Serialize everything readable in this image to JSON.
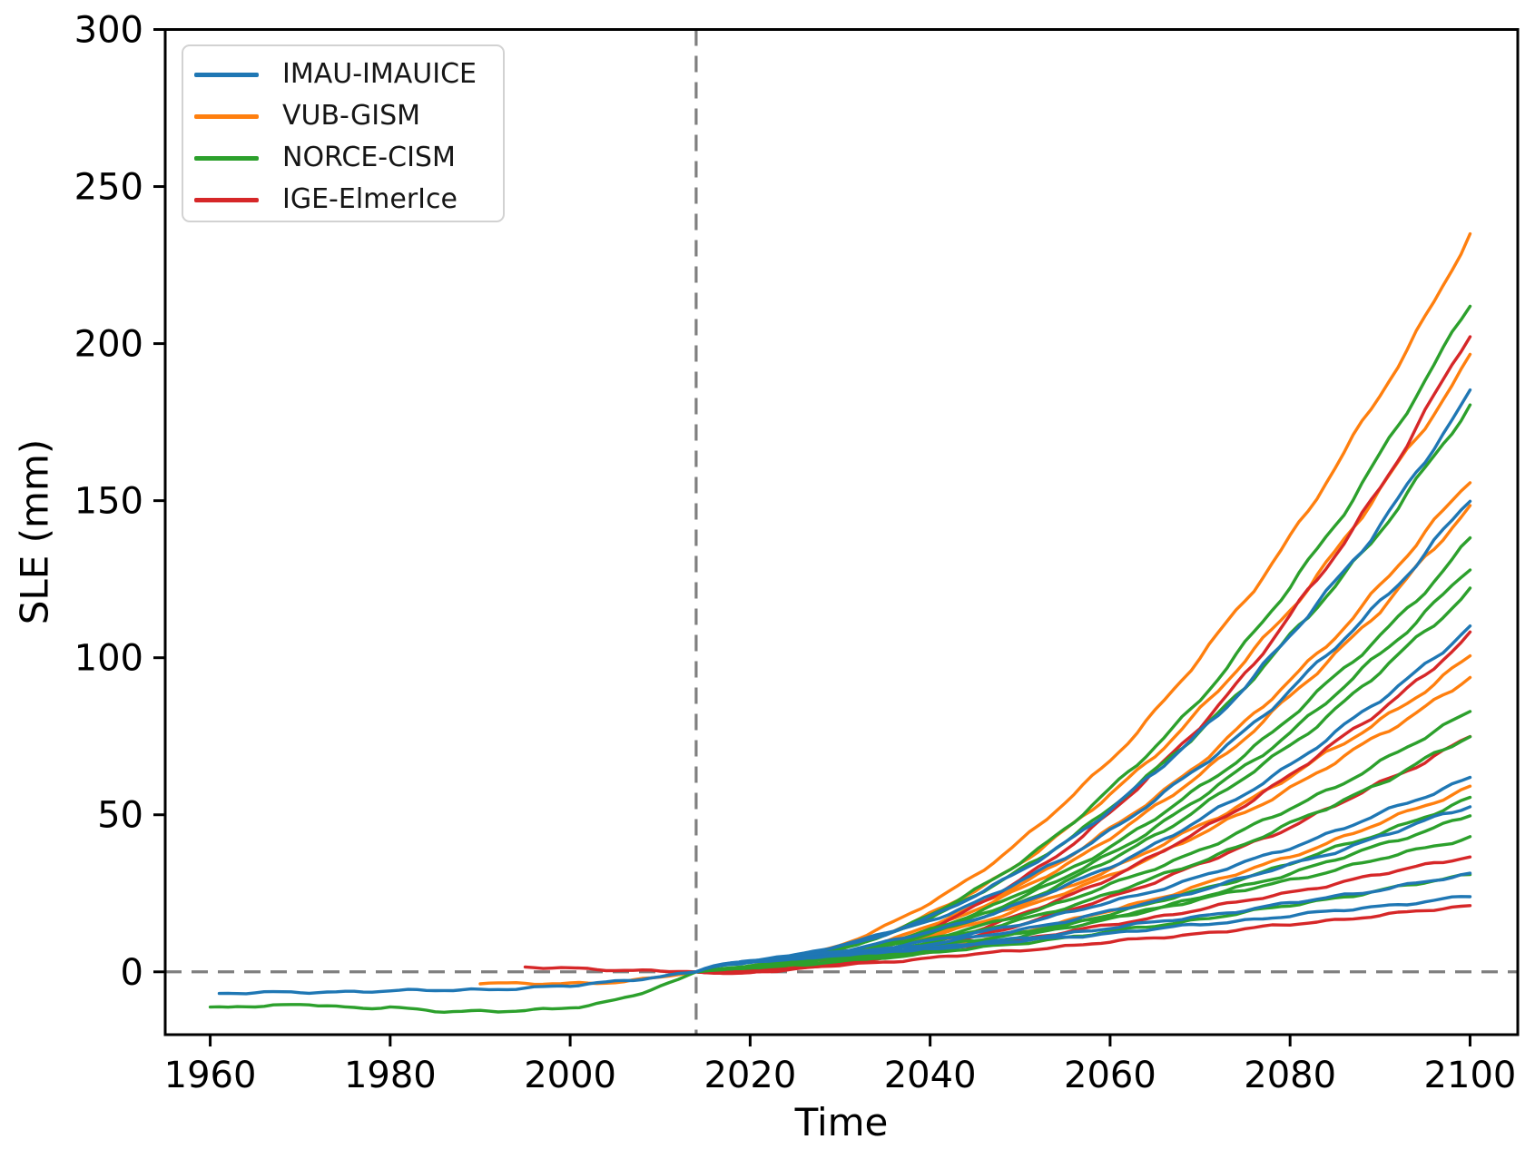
{
  "chart_data": {
    "type": "line",
    "title": "",
    "xlabel": "Time",
    "ylabel": "SLE (mm)",
    "xlim": [
      1955,
      2105.3
    ],
    "ylim": [
      -20,
      300
    ],
    "xticks": [
      1960,
      1980,
      2000,
      2020,
      2040,
      2060,
      2080,
      2100
    ],
    "yticks": [
      0,
      50,
      100,
      150,
      200,
      250,
      300
    ],
    "grid": false,
    "legend_position": "upper left",
    "axis_color": "#000000",
    "line_width": 3.4,
    "reference_lines": [
      {
        "name": "zero-line",
        "orientation": "horizontal",
        "value": 0,
        "style": "dashed",
        "color": "#7f7f7f"
      },
      {
        "name": "projection-start-line",
        "orientation": "vertical",
        "value": 2014,
        "style": "dashed",
        "color": "#7f7f7f"
      }
    ],
    "groups": [
      {
        "name": "IMAU-IMAUICE",
        "color": "#1f77b4"
      },
      {
        "name": "VUB-GISM",
        "color": "#ff7f0e"
      },
      {
        "name": "NORCE-CISM",
        "color": "#2ca02c"
      },
      {
        "name": "IGE-ElmerIce",
        "color": "#d62728"
      }
    ],
    "draw_order": [
      "VUB-GISM",
      "IGE-ElmerIce",
      "NORCE-CISM",
      "IMAU-IMAUICE"
    ],
    "projection_years": [
      2014,
      2015,
      2020,
      2040,
      2060,
      2080,
      2100
    ],
    "projection_series": [
      {
        "group": "IMAU-IMAUICE",
        "end_2100": 184,
        "curve_power": 2.1,
        "start_kick": 3,
        "values": [
          0,
          1.2,
          3.7,
          17.7,
          51.6,
          106.8,
          184
        ]
      },
      {
        "group": "IMAU-IMAUICE",
        "end_2100": 150,
        "curve_power": 2.0,
        "start_kick": 3,
        "values": [
          0,
          1.2,
          3.7,
          16.4,
          45.1,
          89.6,
          150
        ]
      },
      {
        "group": "IMAU-IMAUICE",
        "end_2100": 110,
        "curve_power": 2.0,
        "start_kick": 3,
        "values": [
          0,
          1.2,
          3.5,
          12.8,
          33.6,
          66.0,
          110
        ]
      },
      {
        "group": "IMAU-IMAUICE",
        "end_2100": 62,
        "curve_power": 1.8,
        "start_kick": 3,
        "values": [
          0,
          1.2,
          3.5,
          9.9,
          22.1,
          39.7,
          62
        ]
      },
      {
        "group": "IMAU-IMAUICE",
        "end_2100": 53,
        "curve_power": 1.8,
        "start_kick": 3,
        "values": [
          0,
          1.2,
          3.4,
          8.8,
          19.2,
          34.1,
          53
        ]
      },
      {
        "group": "IMAU-IMAUICE",
        "end_2100": 31,
        "curve_power": 1.5,
        "start_kick": 3,
        "values": [
          0,
          1.2,
          3.5,
          7.7,
          14.0,
          21.8,
          31
        ]
      },
      {
        "group": "IMAU-IMAUICE",
        "end_2100": 24,
        "curve_power": 1.3,
        "start_kick": 3,
        "values": [
          0,
          1.2,
          3.7,
          7.4,
          12.3,
          17.9,
          24
        ]
      },
      {
        "group": "VUB-GISM",
        "end_2100": 235,
        "curve_power": 2.0,
        "start_kick": 0.5,
        "values": [
          0,
          0.2,
          1.6,
          21.9,
          67.6,
          138.6,
          235
        ]
      },
      {
        "group": "VUB-GISM",
        "end_2100": 196,
        "curve_power": 2.0,
        "start_kick": 0.5,
        "values": [
          0,
          0.2,
          1.5,
          18.4,
          56.4,
          115.6,
          196
        ]
      },
      {
        "group": "VUB-GISM",
        "end_2100": 157,
        "curve_power": 2.0,
        "start_kick": 0.5,
        "values": [
          0,
          0.2,
          1.3,
          14.8,
          45.3,
          92.7,
          157
        ]
      },
      {
        "group": "VUB-GISM",
        "end_2100": 148,
        "curve_power": 2.0,
        "start_kick": 0.5,
        "values": [
          0,
          0.2,
          1.2,
          14.0,
          42.7,
          87.4,
          148
        ]
      },
      {
        "group": "VUB-GISM",
        "end_2100": 100,
        "curve_power": 1.8,
        "start_kick": 0.5,
        "values": [
          0,
          0.2,
          1.3,
          12.1,
          32.7,
          62.3,
          100
        ]
      },
      {
        "group": "VUB-GISM",
        "end_2100": 94,
        "curve_power": 1.8,
        "start_kick": 0.5,
        "values": [
          0,
          0.2,
          1.3,
          11.4,
          30.8,
          58.6,
          94
        ]
      },
      {
        "group": "VUB-GISM",
        "end_2100": 59,
        "curve_power": 1.8,
        "start_kick": 0.5,
        "values": [
          0,
          0.2,
          1.0,
          7.3,
          19.4,
          36.8,
          59
        ]
      },
      {
        "group": "NORCE-CISM",
        "end_2100": 213,
        "curve_power": 2.1,
        "start_kick": 1,
        "values": [
          0,
          0.4,
          1.8,
          18.2,
          58.0,
          122.6,
          213
        ]
      },
      {
        "group": "NORCE-CISM",
        "end_2100": 180,
        "curve_power": 2.0,
        "start_kick": 1,
        "values": [
          0,
          0.4,
          1.9,
          17.4,
          52.2,
          106.4,
          180
        ]
      },
      {
        "group": "NORCE-CISM",
        "end_2100": 137,
        "curve_power": 2.0,
        "start_kick": 1,
        "values": [
          0,
          0.4,
          1.7,
          13.4,
          39.9,
          81.1,
          137
        ]
      },
      {
        "group": "NORCE-CISM",
        "end_2100": 129,
        "curve_power": 2.0,
        "start_kick": 1,
        "values": [
          0,
          0.4,
          1.6,
          12.7,
          37.6,
          76.4,
          129
        ]
      },
      {
        "group": "NORCE-CISM",
        "end_2100": 122,
        "curve_power": 2.0,
        "start_kick": 1,
        "values": [
          0,
          0.4,
          1.6,
          12.1,
          35.6,
          72.3,
          122
        ]
      },
      {
        "group": "NORCE-CISM",
        "end_2100": 83,
        "curve_power": 1.8,
        "start_kick": 1,
        "values": [
          0,
          0.4,
          1.7,
          10.5,
          27.6,
          51.9,
          83
        ]
      },
      {
        "group": "NORCE-CISM",
        "end_2100": 75,
        "curve_power": 1.8,
        "start_kick": 1,
        "values": [
          0,
          0.4,
          1.6,
          9.6,
          25.0,
          47.0,
          75
        ]
      },
      {
        "group": "NORCE-CISM",
        "end_2100": 55,
        "curve_power": 1.8,
        "start_kick": 1,
        "values": [
          0,
          0.4,
          1.4,
          7.3,
          18.5,
          34.6,
          55
        ]
      },
      {
        "group": "NORCE-CISM",
        "end_2100": 50,
        "curve_power": 1.8,
        "start_kick": 1,
        "values": [
          0,
          0.4,
          1.4,
          6.7,
          16.9,
          31.4,
          50
        ]
      },
      {
        "group": "NORCE-CISM",
        "end_2100": 43,
        "curve_power": 1.5,
        "start_kick": 1,
        "values": [
          0,
          0.4,
          1.8,
          8.0,
          17.4,
          29.2,
          43
        ]
      },
      {
        "group": "NORCE-CISM",
        "end_2100": 31,
        "curve_power": 1.5,
        "start_kick": 1,
        "values": [
          0,
          0.4,
          1.5,
          6.0,
          12.7,
          21.2,
          31
        ]
      },
      {
        "group": "IGE-ElmerIce",
        "end_2100": 203,
        "curve_power": 2.2,
        "start_kick": -0.8,
        "values": [
          0,
          -0.3,
          -0.2,
          13.9,
          50.6,
          113.0,
          203
        ]
      },
      {
        "group": "IGE-ElmerIce",
        "end_2100": 107,
        "curve_power": 2.0,
        "start_kick": -0.8,
        "values": [
          0,
          -0.3,
          -0.3,
          9.1,
          30.0,
          62.7,
          107
        ]
      },
      {
        "group": "IGE-ElmerIce",
        "end_2100": 75,
        "curve_power": 1.8,
        "start_kick": -0.8,
        "values": [
          0,
          -0.3,
          -0.2,
          8.0,
          23.7,
          46.3,
          75
        ]
      },
      {
        "group": "IGE-ElmerIce",
        "end_2100": 37,
        "curve_power": 1.4,
        "start_kick": -0.8,
        "values": [
          0,
          -0.3,
          0.1,
          6.3,
          14.9,
          25.3,
          37
        ]
      },
      {
        "group": "IGE-ElmerIce",
        "end_2100": 21,
        "curve_power": 1.2,
        "start_kick": -0.8,
        "values": [
          0,
          -0.3,
          0.1,
          4.4,
          9.5,
          15.1,
          21
        ]
      }
    ],
    "historical_series": [
      {
        "group": "IMAU-IMAUICE",
        "years": [
          1961,
          1965,
          1970,
          1975,
          1980,
          1985,
          1990,
          1995,
          2000,
          2005,
          2010,
          2014
        ],
        "values": [
          -6.9,
          -6.7,
          -6.5,
          -6.3,
          -6.1,
          -5.9,
          -5.6,
          -5.2,
          -4.5,
          -3.0,
          -1.5,
          0
        ]
      },
      {
        "group": "VUB-GISM",
        "years": [
          1990,
          1993,
          1996,
          1999,
          2002,
          2005,
          2008,
          2011,
          2014
        ],
        "values": [
          -3.4,
          -3.6,
          -3.8,
          -3.9,
          -3.7,
          -3.2,
          -2.3,
          -1.2,
          0
        ]
      },
      {
        "group": "NORCE-CISM",
        "years": [
          1960,
          1963,
          1966,
          1969,
          1971,
          1974,
          1977,
          1980,
          1983,
          1986,
          1989,
          1992,
          1995,
          1998,
          2001,
          2004,
          2007,
          2010,
          2012,
          2014
        ],
        "values": [
          -11.5,
          -11.0,
          -11.2,
          -10.4,
          -10.2,
          -11.0,
          -11.6,
          -11.3,
          -12.2,
          -12.6,
          -12.4,
          -12.5,
          -12.3,
          -12.0,
          -11.2,
          -9.6,
          -7.4,
          -4.6,
          -2.6,
          0
        ]
      },
      {
        "group": "IGE-ElmerIce",
        "years": [
          1995,
          1998,
          2001,
          2004,
          2007,
          2010,
          2014
        ],
        "values": [
          1.4,
          1.2,
          1.0,
          0.8,
          0.5,
          0.3,
          0
        ]
      }
    ]
  }
}
